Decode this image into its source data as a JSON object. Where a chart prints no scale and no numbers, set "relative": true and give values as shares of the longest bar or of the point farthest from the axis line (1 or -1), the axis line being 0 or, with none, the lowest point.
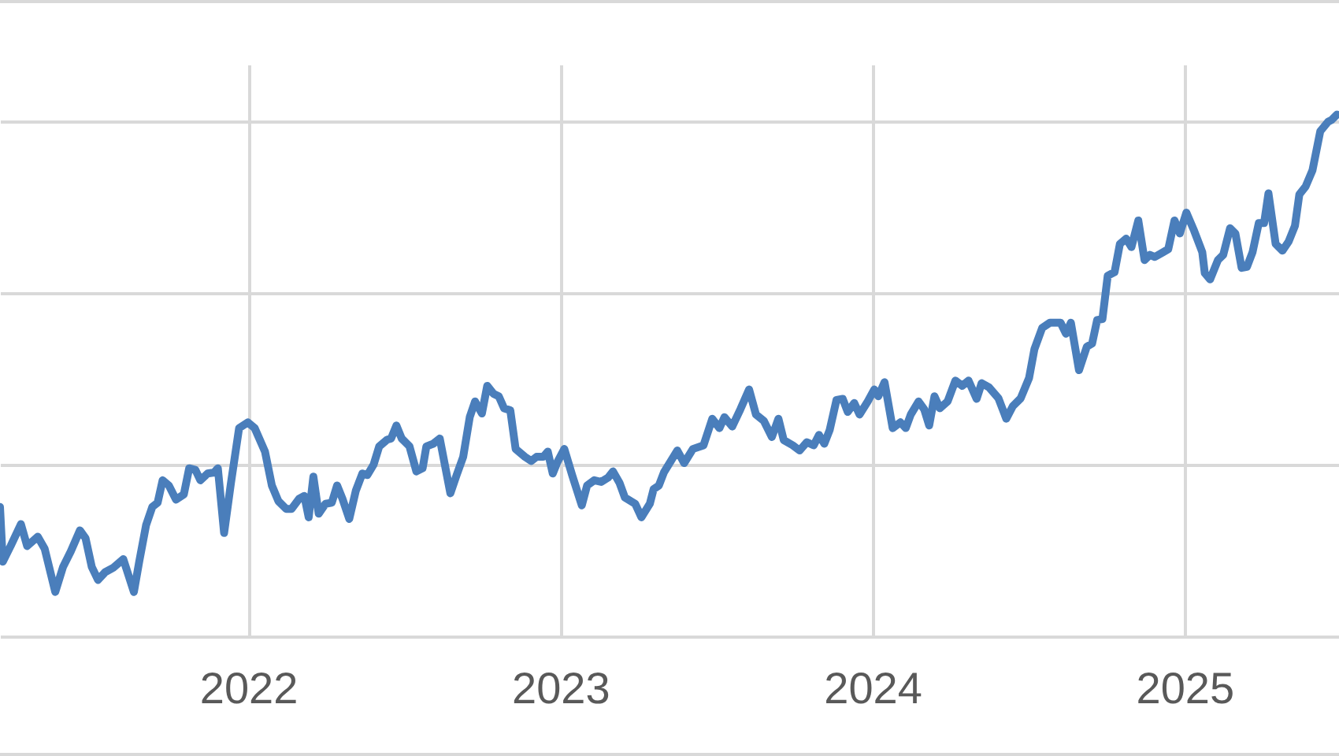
{
  "chart_data": {
    "type": "line",
    "relative": true,
    "grid": true,
    "tick_labels": "x",
    "line_style": "solid",
    "xlim": [
      2021.205,
      2025.495
    ],
    "xticks": [
      2022,
      2023,
      2024,
      2025
    ],
    "x": [
      2021.205,
      2021.214,
      2021.239,
      2021.272,
      2021.292,
      2021.326,
      2021.348,
      2021.382,
      2021.407,
      2021.432,
      2021.461,
      2021.479,
      2021.499,
      2021.519,
      2021.542,
      2021.567,
      2021.6,
      2021.634,
      2021.651,
      2021.673,
      2021.693,
      2021.71,
      2021.726,
      2021.746,
      2021.769,
      2021.794,
      2021.811,
      2021.831,
      2021.847,
      2021.87,
      2021.891,
      2021.903,
      2021.923,
      2021.945,
      2021.971,
      2021.999,
      2022.021,
      2022.054,
      2022.076,
      2022.097,
      2022.122,
      2022.139,
      2022.164,
      2022.18,
      2022.194,
      2022.209,
      2022.226,
      2022.248,
      2022.268,
      2022.285,
      2022.302,
      2022.324,
      2022.345,
      2022.366,
      2022.382,
      2022.402,
      2022.42,
      2022.446,
      2022.458,
      2022.475,
      2022.492,
      2022.517,
      2022.539,
      2022.559,
      2022.571,
      2022.593,
      2022.614,
      2022.648,
      2022.668,
      2022.689,
      2022.71,
      2022.727,
      2022.749,
      2022.766,
      2022.786,
      2022.803,
      2022.82,
      2022.84,
      2022.857,
      2022.887,
      2022.907,
      2022.924,
      2022.946,
      2022.96,
      2022.976,
      2022.991,
      2023.013,
      2023.038,
      2023.069,
      2023.086,
      2023.109,
      2023.131,
      2023.153,
      2023.169,
      2023.19,
      2023.207,
      2023.24,
      2023.26,
      2023.287,
      2023.299,
      2023.316,
      2023.332,
      2023.375,
      2023.397,
      2023.425,
      2023.459,
      2023.487,
      2023.51,
      2023.526,
      2023.551,
      2023.577,
      2023.605,
      2023.627,
      2023.652,
      2023.678,
      2023.699,
      2023.716,
      2023.745,
      2023.767,
      2023.79,
      2023.812,
      2023.829,
      2023.846,
      2023.863,
      2023.885,
      2023.905,
      2023.921,
      2023.942,
      2023.959,
      2023.985,
      2024.006,
      2024.019,
      2024.039,
      2024.065,
      2024.09,
      2024.107,
      2024.123,
      2024.148,
      2024.166,
      2024.182,
      2024.199,
      2024.216,
      2024.241,
      2024.266,
      2024.288,
      2024.308,
      2024.334,
      2024.35,
      2024.374,
      2024.404,
      2024.429,
      2024.45,
      2024.475,
      2024.502,
      2024.519,
      2024.544,
      2024.569,
      2024.603,
      2024.62,
      2024.636,
      2024.662,
      2024.687,
      2024.704,
      2024.72,
      2024.737,
      2024.754,
      2024.776,
      2024.793,
      2024.813,
      2024.83,
      2024.852,
      2024.872,
      2024.889,
      2024.905,
      2024.931,
      2024.948,
      2024.968,
      2024.985,
      2025.006,
      2025.031,
      2025.057,
      2025.065,
      2025.082,
      2025.107,
      2025.124,
      2025.146,
      2025.163,
      2025.183,
      2025.2,
      2025.218,
      2025.238,
      2025.255,
      2025.269,
      2025.292,
      2025.314,
      2025.334,
      2025.354,
      2025.368,
      2025.388,
      2025.41,
      2025.435,
      2025.46,
      2025.472,
      2025.489
    ],
    "series": [
      {
        "color": "#4a7ebb",
        "values": [
          0.248,
          0.143,
          0.173,
          0.215,
          0.173,
          0.191,
          0.168,
          0.085,
          0.133,
          0.163,
          0.203,
          0.188,
          0.133,
          0.108,
          0.123,
          0.131,
          0.148,
          0.085,
          0.143,
          0.213,
          0.248,
          0.256,
          0.299,
          0.289,
          0.262,
          0.272,
          0.322,
          0.319,
          0.299,
          0.312,
          0.314,
          0.322,
          0.198,
          0.294,
          0.399,
          0.41,
          0.399,
          0.354,
          0.289,
          0.259,
          0.244,
          0.244,
          0.264,
          0.269,
          0.228,
          0.306,
          0.235,
          0.254,
          0.256,
          0.289,
          0.264,
          0.225,
          0.279,
          0.312,
          0.309,
          0.329,
          0.364,
          0.377,
          0.379,
          0.404,
          0.379,
          0.364,
          0.316,
          0.322,
          0.364,
          0.369,
          0.379,
          0.274,
          0.309,
          0.344,
          0.42,
          0.45,
          0.427,
          0.48,
          0.465,
          0.46,
          0.437,
          0.433,
          0.359,
          0.344,
          0.336,
          0.344,
          0.344,
          0.354,
          0.312,
          0.334,
          0.359,
          0.309,
          0.251,
          0.289,
          0.299,
          0.296,
          0.304,
          0.316,
          0.294,
          0.266,
          0.254,
          0.228,
          0.254,
          0.282,
          0.289,
          0.314,
          0.356,
          0.332,
          0.359,
          0.366,
          0.417,
          0.399,
          0.42,
          0.402,
          0.435,
          0.473,
          0.425,
          0.413,
          0.382,
          0.417,
          0.376,
          0.366,
          0.356,
          0.372,
          0.366,
          0.386,
          0.369,
          0.395,
          0.453,
          0.455,
          0.43,
          0.447,
          0.425,
          0.45,
          0.473,
          0.46,
          0.487,
          0.399,
          0.41,
          0.399,
          0.425,
          0.45,
          0.435,
          0.404,
          0.46,
          0.437,
          0.45,
          0.49,
          0.48,
          0.49,
          0.455,
          0.485,
          0.477,
          0.456,
          0.417,
          0.441,
          0.456,
          0.495,
          0.55,
          0.591,
          0.601,
          0.601,
          0.58,
          0.601,
          0.51,
          0.555,
          0.561,
          0.606,
          0.608,
          0.691,
          0.698,
          0.752,
          0.762,
          0.746,
          0.797,
          0.721,
          0.731,
          0.727,
          0.736,
          0.742,
          0.797,
          0.772,
          0.812,
          0.777,
          0.736,
          0.696,
          0.684,
          0.721,
          0.731,
          0.782,
          0.772,
          0.706,
          0.708,
          0.736,
          0.792,
          0.792,
          0.849,
          0.752,
          0.739,
          0.757,
          0.787,
          0.847,
          0.862,
          0.893,
          0.968,
          0.986,
          0.99,
          1
        ]
      }
    ]
  }
}
